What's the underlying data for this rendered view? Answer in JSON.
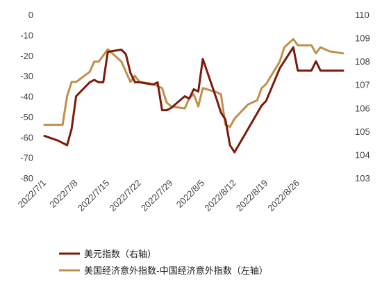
{
  "chart_data": {
    "type": "line",
    "title": "",
    "xlabel": "",
    "left_axis": {
      "range": [
        -80,
        0
      ],
      "ticks": [
        0,
        -10,
        -20,
        -30,
        -40,
        -50,
        -60,
        -70,
        -80
      ]
    },
    "right_axis": {
      "range": [
        103,
        110
      ],
      "ticks": [
        110,
        109,
        108,
        107,
        106,
        105,
        104,
        103
      ]
    },
    "x_tick_labels": [
      "2022/7/1",
      "2022/7/8",
      "2022/7/15",
      "2022/7/22",
      "2022/7/29",
      "2022/8/5",
      "2022/8/12",
      "2022/8/19",
      "2022/8/26"
    ],
    "grid": false,
    "legend_position": "bottom",
    "series": [
      {
        "name": "美元指数（右轴）",
        "axis": "right",
        "color": "#7b1a0b",
        "points": [
          [
            "2022/7/1",
            104.8
          ],
          [
            "2022/7/4",
            104.6
          ],
          [
            "2022/7/5",
            104.5
          ],
          [
            "2022/7/6",
            104.4
          ],
          [
            "2022/7/7",
            105.1
          ],
          [
            "2022/7/8",
            106.5
          ],
          [
            "2022/7/11",
            107.1
          ],
          [
            "2022/7/12",
            107.2
          ],
          [
            "2022/7/13",
            107.1
          ],
          [
            "2022/7/14",
            107.1
          ],
          [
            "2022/7/15",
            108.4
          ],
          [
            "2022/7/18",
            108.5
          ],
          [
            "2022/7/19",
            108.3
          ],
          [
            "2022/7/20",
            107.5
          ],
          [
            "2022/7/21",
            107.1
          ],
          [
            "2022/7/22",
            107.1
          ],
          [
            "2022/7/25",
            107.0
          ],
          [
            "2022/7/26",
            107.1
          ],
          [
            "2022/7/27",
            105.9
          ],
          [
            "2022/7/28",
            105.9
          ],
          [
            "2022/7/29",
            106.0
          ],
          [
            "2022/8/1",
            106.5
          ],
          [
            "2022/8/2",
            106.4
          ],
          [
            "2022/8/3",
            106.8
          ],
          [
            "2022/8/4",
            106.7
          ],
          [
            "2022/8/5",
            108.1
          ],
          [
            "2022/8/8",
            106.4
          ],
          [
            "2022/8/9",
            105.8
          ],
          [
            "2022/8/10",
            105.5
          ],
          [
            "2022/8/11",
            104.4
          ],
          [
            "2022/8/12",
            104.1
          ],
          [
            "2022/8/15",
            105.1
          ],
          [
            "2022/8/18",
            106.1
          ],
          [
            "2022/8/19",
            106.3
          ],
          [
            "2022/8/22",
            107.7
          ],
          [
            "2022/8/25",
            108.6
          ],
          [
            "2022/8/26",
            107.6
          ],
          [
            "2022/8/29",
            107.6
          ],
          [
            "2022/8/30",
            108.0
          ],
          [
            "2022/8/31",
            107.6
          ],
          [
            "2022/9/2",
            107.6
          ],
          [
            "2022/9/5",
            107.6
          ]
        ]
      },
      {
        "name": "美国经济意外指数-中国经济意外指数（左轴）",
        "axis": "left",
        "color": "#bf8f4c",
        "points": [
          [
            "2022/7/1",
            -54
          ],
          [
            "2022/7/4",
            -54
          ],
          [
            "2022/7/5",
            -54
          ],
          [
            "2022/7/6",
            -40
          ],
          [
            "2022/7/7",
            -33
          ],
          [
            "2022/7/8",
            -33
          ],
          [
            "2022/7/11",
            -28
          ],
          [
            "2022/7/12",
            -23
          ],
          [
            "2022/7/13",
            -23
          ],
          [
            "2022/7/14",
            -20
          ],
          [
            "2022/7/15",
            -17
          ],
          [
            "2022/7/18",
            -23
          ],
          [
            "2022/7/19",
            -28
          ],
          [
            "2022/7/20",
            -33
          ],
          [
            "2022/7/21",
            -30
          ],
          [
            "2022/7/22",
            -33
          ],
          [
            "2022/7/25",
            -34
          ],
          [
            "2022/7/26",
            -35
          ],
          [
            "2022/7/27",
            -36
          ],
          [
            "2022/7/28",
            -43
          ],
          [
            "2022/7/29",
            -45
          ],
          [
            "2022/8/1",
            -46
          ],
          [
            "2022/8/2",
            -41
          ],
          [
            "2022/8/3",
            -39
          ],
          [
            "2022/8/4",
            -45
          ],
          [
            "2022/8/5",
            -36
          ],
          [
            "2022/8/8",
            -38
          ],
          [
            "2022/8/9",
            -39
          ],
          [
            "2022/8/10",
            -54
          ],
          [
            "2022/8/11",
            -55
          ],
          [
            "2022/8/12",
            -51
          ],
          [
            "2022/8/15",
            -44
          ],
          [
            "2022/8/16",
            -43
          ],
          [
            "2022/8/17",
            -42
          ],
          [
            "2022/8/18",
            -36
          ],
          [
            "2022/8/19",
            -34
          ],
          [
            "2022/8/22",
            -23
          ],
          [
            "2022/8/23",
            -16
          ],
          [
            "2022/8/25",
            -12
          ],
          [
            "2022/8/26",
            -15
          ],
          [
            "2022/8/29",
            -15
          ],
          [
            "2022/8/30",
            -19
          ],
          [
            "2022/8/31",
            -16
          ],
          [
            "2022/9/2",
            -18
          ],
          [
            "2022/9/5",
            -19
          ]
        ]
      }
    ]
  }
}
